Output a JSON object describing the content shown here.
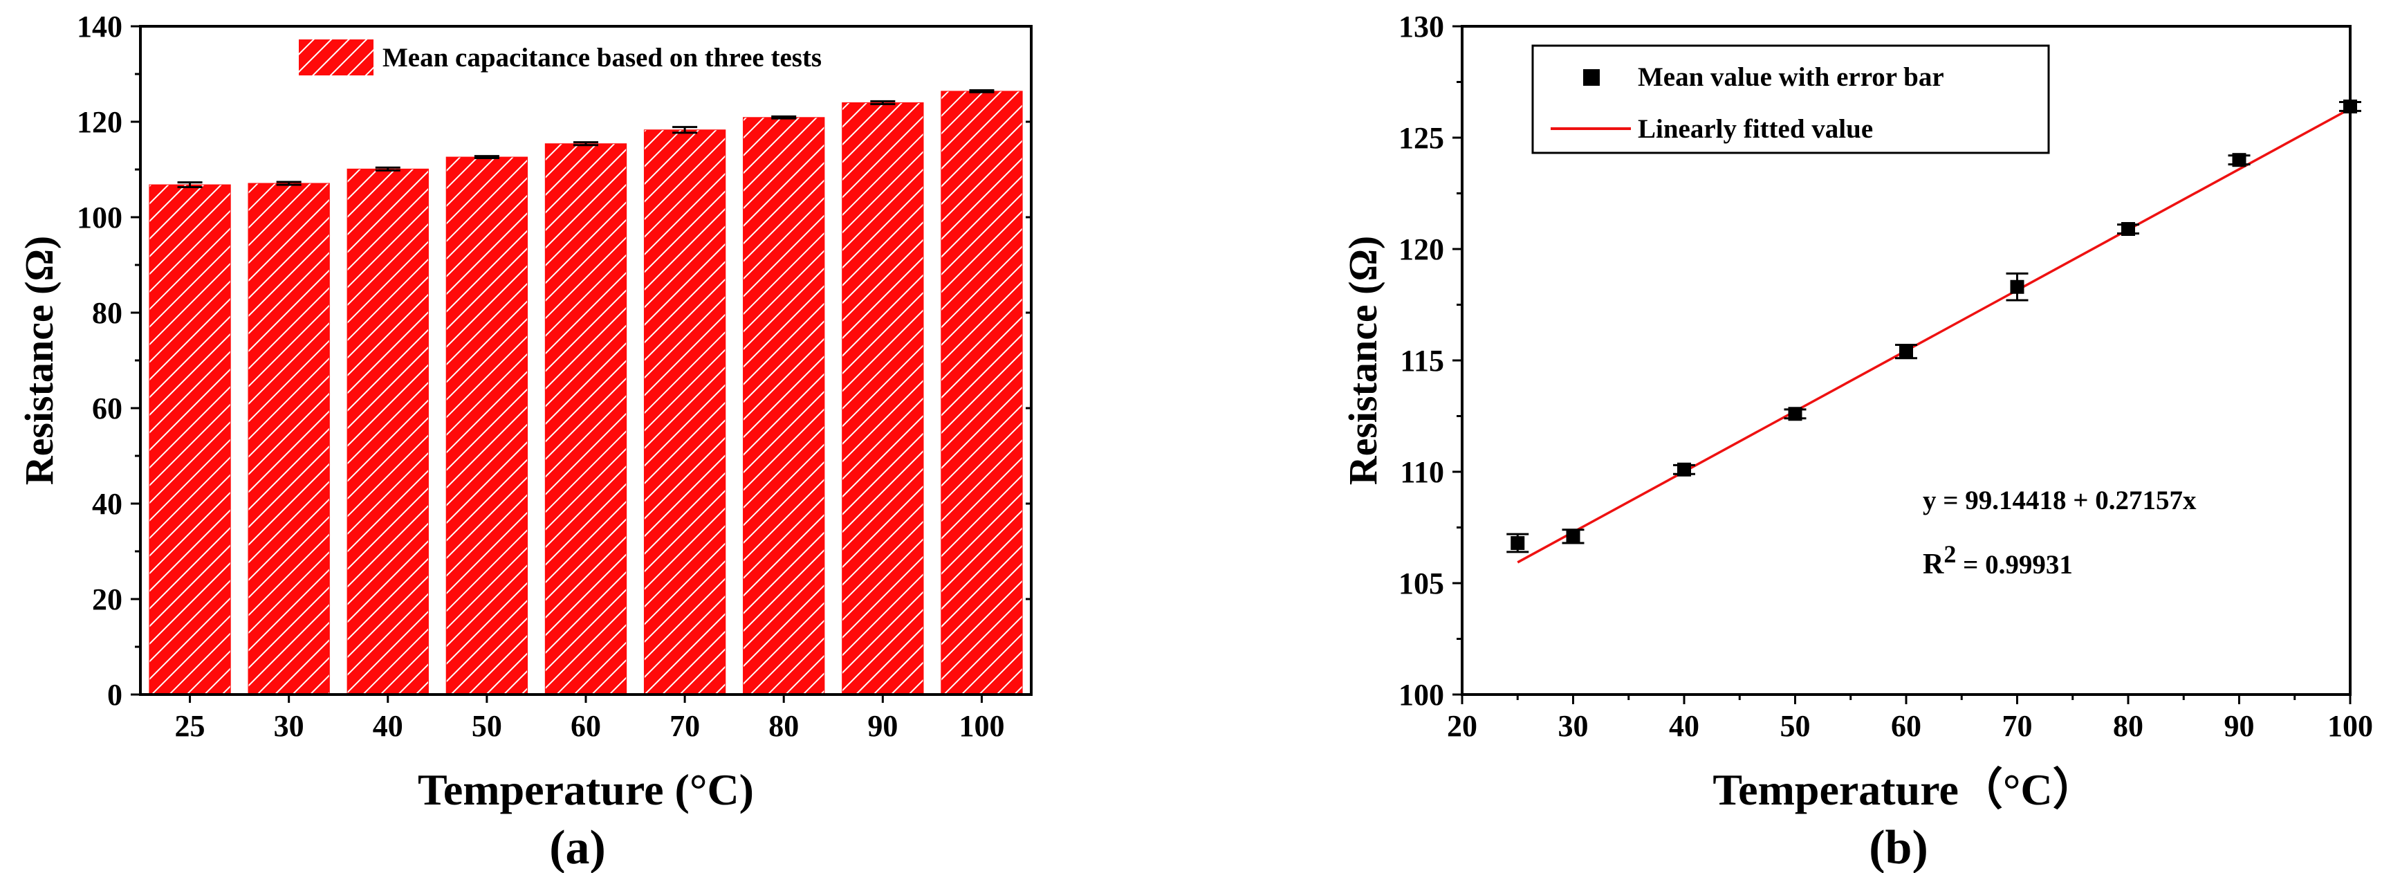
{
  "colors": {
    "bar_fill": "#ff0a0a",
    "hatch": "#ffffff",
    "fit_line": "#ee1111",
    "marker": "#000000",
    "axis": "#000000"
  },
  "chart_data": [
    {
      "type": "bar",
      "panel_label": "(a)",
      "xlabel": "Temperature (°C)",
      "ylabel": "Resistance (Ω)",
      "ylim": [
        0,
        140
      ],
      "yticks": [
        0,
        20,
        40,
        60,
        80,
        100,
        120,
        140
      ],
      "categories": [
        "25",
        "30",
        "40",
        "50",
        "60",
        "70",
        "80",
        "90",
        "100"
      ],
      "values": [
        106.8,
        107.1,
        110.1,
        112.6,
        115.4,
        118.3,
        120.9,
        124.0,
        126.4
      ],
      "errors": [
        0.5,
        0.3,
        0.3,
        0.2,
        0.3,
        0.6,
        0.2,
        0.3,
        0.2
      ],
      "legend": {
        "label": "Mean capacitance based on three tests",
        "position": "top"
      }
    },
    {
      "type": "scatter",
      "panel_label": "(b)",
      "xlabel": "Temperature（°C）",
      "ylabel": "Resistance (Ω)",
      "xlim": [
        20,
        100
      ],
      "ylim": [
        100,
        130
      ],
      "xticks": [
        20,
        30,
        40,
        50,
        60,
        70,
        80,
        90,
        100
      ],
      "yticks": [
        100,
        105,
        110,
        115,
        120,
        125,
        130
      ],
      "x": [
        25,
        30,
        40,
        50,
        60,
        70,
        80,
        90,
        100
      ],
      "y": [
        106.8,
        107.1,
        110.1,
        112.6,
        115.4,
        118.3,
        120.9,
        124.0,
        126.4
      ],
      "errors": [
        0.4,
        0.3,
        0.2,
        0.2,
        0.3,
        0.6,
        0.2,
        0.2,
        0.2
      ],
      "fit": {
        "intercept": 99.14418,
        "slope": 0.27157,
        "x_range": [
          25,
          100
        ]
      },
      "equation_text": "y = 99.14418 + 0.27157x",
      "r2_prefix": "R",
      "r2_exponent": "2",
      "r2_value": " = 0.99931",
      "legend": {
        "position": "top-left",
        "entries": [
          {
            "label": "Mean value with error bar",
            "kind": "marker"
          },
          {
            "label": "Linearly fitted value",
            "kind": "line"
          }
        ]
      }
    }
  ]
}
